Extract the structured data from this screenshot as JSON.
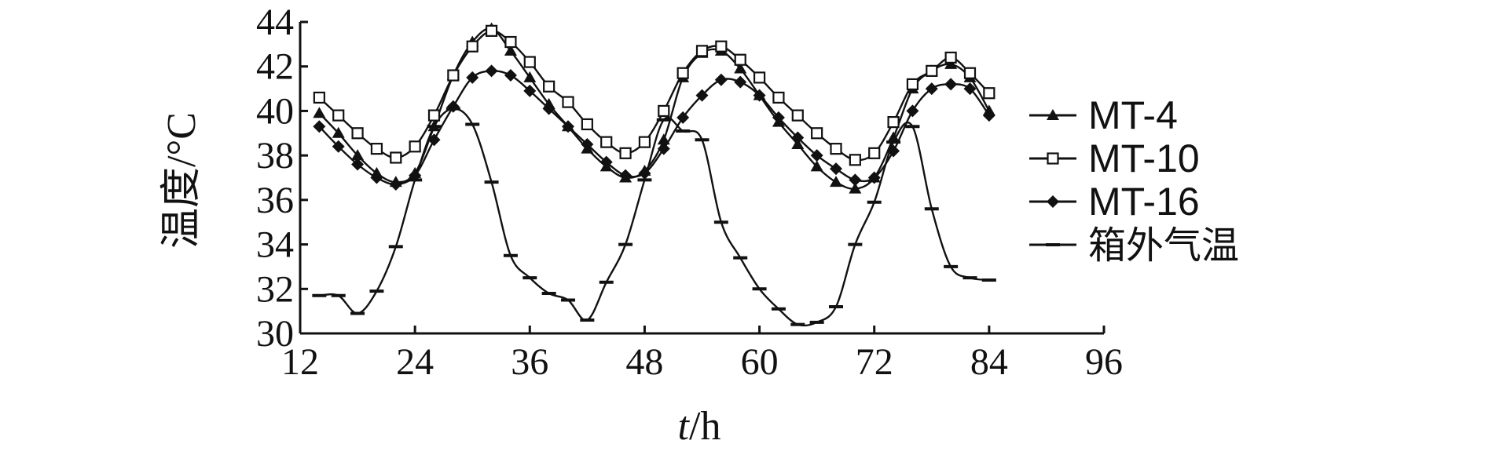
{
  "chart_data": {
    "type": "line",
    "title": "",
    "xlabel_italic": "t",
    "xlabel_rest": "/h",
    "ylabel": "温度/°C",
    "xlim": [
      12,
      96
    ],
    "ylim": [
      30,
      44
    ],
    "xticks": [
      12,
      24,
      36,
      48,
      60,
      72,
      84,
      96
    ],
    "yticks": [
      30,
      32,
      34,
      36,
      38,
      40,
      42,
      44
    ],
    "grid": false,
    "legend_position": "right",
    "x": [
      14,
      16,
      18,
      20,
      22,
      24,
      26,
      28,
      30,
      32,
      34,
      36,
      38,
      40,
      42,
      44,
      46,
      48,
      50,
      52,
      54,
      56,
      58,
      60,
      62,
      64,
      66,
      68,
      70,
      72,
      74,
      76,
      78,
      80,
      82,
      84
    ],
    "series": [
      {
        "name": "MT-4",
        "marker": "triangle",
        "values": [
          39.9,
          39.0,
          38.0,
          37.2,
          36.8,
          37.2,
          39.3,
          41.6,
          43.1,
          43.7,
          42.7,
          41.5,
          40.3,
          39.3,
          38.3,
          37.5,
          37.0,
          37.3,
          38.7,
          41.5,
          42.6,
          42.7,
          41.9,
          40.7,
          39.5,
          38.5,
          37.5,
          36.8,
          36.5,
          37.0,
          38.8,
          41.0,
          41.8,
          42.1,
          41.5,
          40.0
        ]
      },
      {
        "name": "MT-10",
        "marker": "square",
        "values": [
          40.6,
          39.8,
          39.0,
          38.3,
          37.9,
          38.4,
          39.8,
          41.6,
          42.9,
          43.6,
          43.1,
          42.2,
          41.1,
          40.4,
          39.4,
          38.6,
          38.1,
          38.6,
          40.0,
          41.7,
          42.7,
          42.9,
          42.3,
          41.5,
          40.6,
          39.8,
          39.0,
          38.3,
          37.8,
          38.1,
          39.5,
          41.2,
          41.8,
          42.4,
          41.7,
          40.8
        ]
      },
      {
        "name": "MT-16",
        "marker": "diamond",
        "values": [
          39.3,
          38.4,
          37.6,
          37.0,
          36.7,
          37.1,
          38.7,
          40.2,
          41.5,
          41.8,
          41.6,
          40.9,
          40.1,
          39.3,
          38.5,
          37.7,
          37.1,
          37.2,
          38.3,
          39.7,
          40.7,
          41.4,
          41.3,
          40.7,
          39.7,
          38.8,
          38.0,
          37.4,
          36.9,
          37.0,
          38.2,
          40.0,
          41.0,
          41.2,
          41.0,
          39.8
        ]
      },
      {
        "name": "箱外气温",
        "marker": "dash",
        "values": [
          31.7,
          31.7,
          30.9,
          31.9,
          33.9,
          36.9,
          39.3,
          40.1,
          39.4,
          36.8,
          33.5,
          32.5,
          31.8,
          31.5,
          30.6,
          32.3,
          34.0,
          36.9,
          39.6,
          39.1,
          38.7,
          35.0,
          33.4,
          32.0,
          31.1,
          30.4,
          30.5,
          31.2,
          34.0,
          35.9,
          38.6,
          39.3,
          35.6,
          33.0,
          32.5,
          32.4
        ]
      }
    ]
  }
}
